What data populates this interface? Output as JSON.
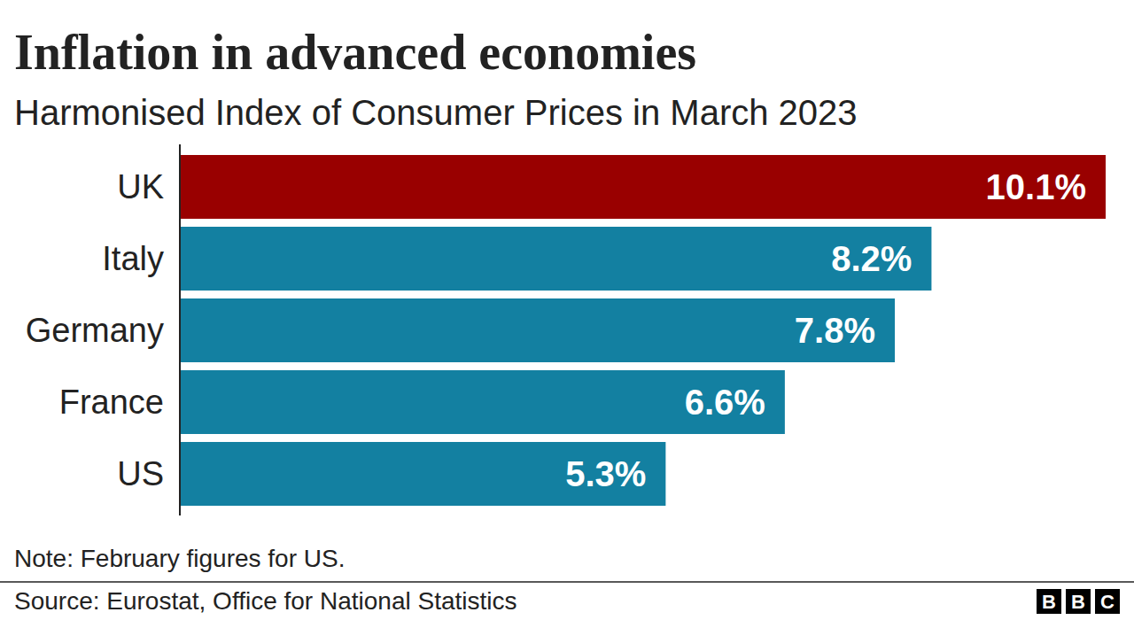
{
  "chart_data": {
    "type": "bar",
    "orientation": "horizontal",
    "title": "Inflation in advanced economies",
    "subtitle": "Harmonised Index of Consumer Prices in March 2023",
    "categories": [
      "UK",
      "Italy",
      "Germany",
      "France",
      "US"
    ],
    "values": [
      10.1,
      8.2,
      7.8,
      6.6,
      5.3
    ],
    "value_labels": [
      "10.1%",
      "8.2%",
      "7.8%",
      "6.6%",
      "5.3%"
    ],
    "colors": [
      "#990000",
      "#1380a1",
      "#1380a1",
      "#1380a1",
      "#1380a1"
    ],
    "xlim": [
      0,
      10.1
    ],
    "data_labels": true,
    "tick_labels": "y",
    "grid": false,
    "note": "Note: February figures for US.",
    "source": "Source: Eurostat, Office for National Statistics",
    "logo": [
      "B",
      "B",
      "C"
    ]
  }
}
